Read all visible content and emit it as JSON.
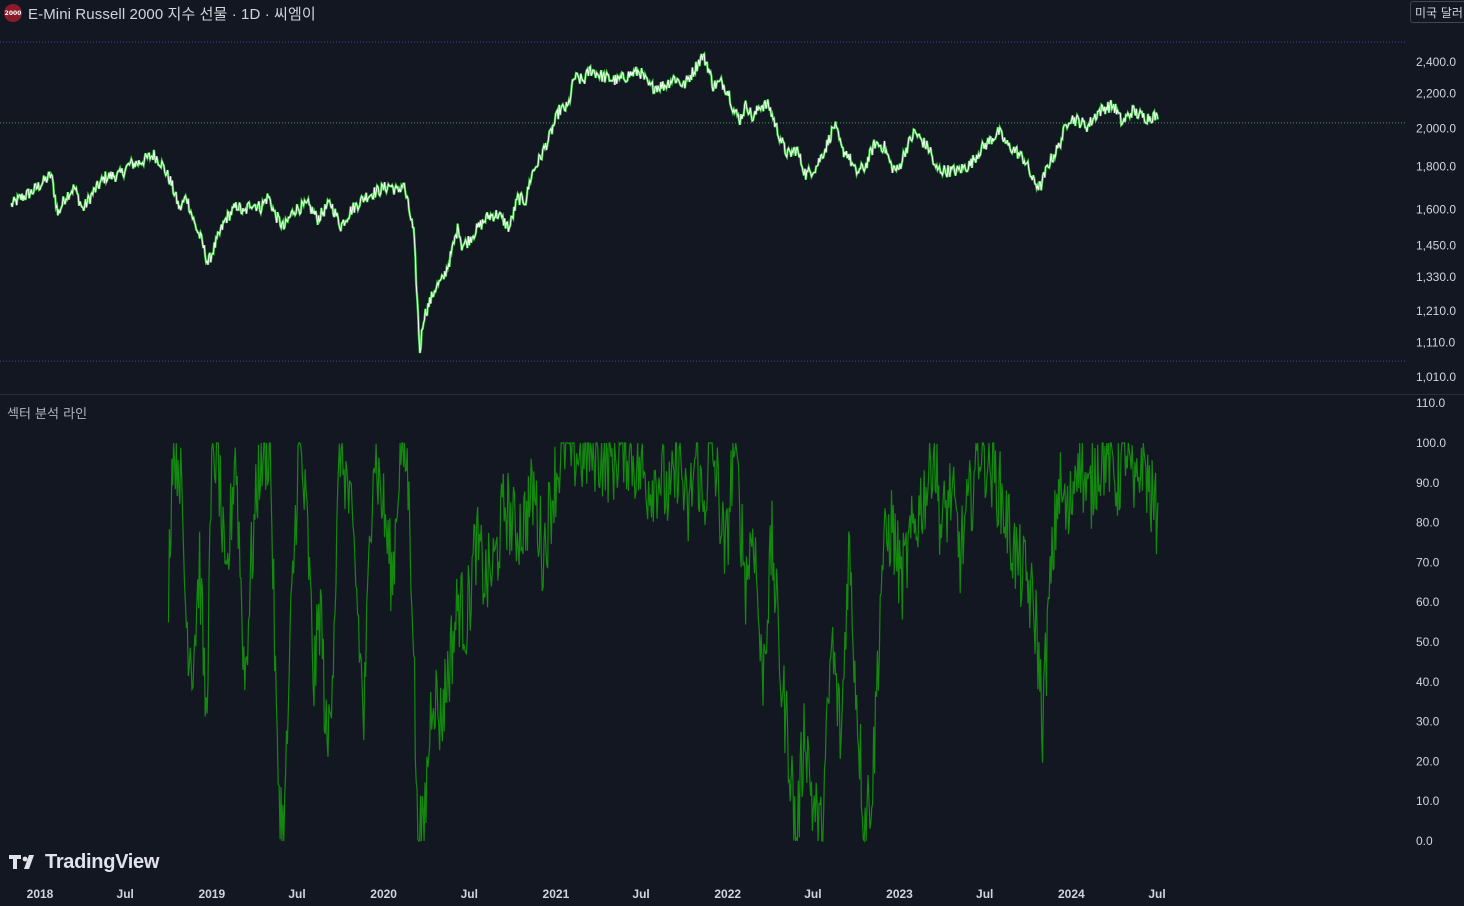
{
  "header": {
    "logo_text": "2000",
    "title": "E-Mini Russell 2000 지수 선물 · 1D · 씨엠이",
    "currency": "미국 달러"
  },
  "indicator": {
    "label": "섹터 분석 라인"
  },
  "branding": {
    "name": "TradingView",
    "logo_icon": "tradingview-logo-icon"
  },
  "colors": {
    "background": "#131722",
    "price_line": "#ffffff",
    "price_highlight": "#3ee63e",
    "indicator_line": "#138a0e",
    "reference_line": "#4caf50",
    "range_line": "#3f51b5"
  },
  "chart_data": [
    {
      "type": "line",
      "y_scale": "log",
      "ylim": [
        1000,
        2600
      ],
      "yticks": [
        {
          "value": 2400,
          "label": "2,400.0"
        },
        {
          "value": 2200,
          "label": "2,200.0"
        },
        {
          "value": 2000,
          "label": "2,000.0"
        },
        {
          "value": 1800,
          "label": "1,800.0"
        },
        {
          "value": 1600,
          "label": "1,600.0"
        },
        {
          "value": 1450,
          "label": "1,450.0"
        },
        {
          "value": 1330,
          "label": "1,330.0"
        },
        {
          "value": 1210,
          "label": "1,210.0"
        },
        {
          "value": 1110,
          "label": "1,110.0"
        },
        {
          "value": 1010,
          "label": "1,010.0"
        }
      ],
      "reference_lines": [
        2030,
        2535,
        1055
      ],
      "series": [
        {
          "x": [
            "2017-11-01",
            "2017-11-20",
            "2017-12-15",
            "2018-01-05",
            "2018-01-25",
            "2018-02-08",
            "2018-02-25",
            "2018-03-15",
            "2018-04-02",
            "2018-04-25",
            "2018-05-20",
            "2018-06-20",
            "2018-07-10",
            "2018-07-30",
            "2018-08-31",
            "2018-09-15",
            "2018-10-05",
            "2018-10-25",
            "2018-11-08",
            "2018-11-25",
            "2018-12-10",
            "2018-12-24",
            "2019-01-10",
            "2019-01-31",
            "2019-02-25",
            "2019-03-10",
            "2019-03-25",
            "2019-04-15",
            "2019-05-01",
            "2019-05-15",
            "2019-06-03",
            "2019-06-25",
            "2019-07-25",
            "2019-08-14",
            "2019-09-10",
            "2019-10-02",
            "2019-10-25",
            "2019-11-25",
            "2019-12-26",
            "2020-01-15",
            "2020-01-31",
            "2020-02-12",
            "2020-02-24",
            "2020-03-05",
            "2020-03-12",
            "2020-03-18",
            "2020-03-26",
            "2020-04-08",
            "2020-04-20",
            "2020-05-06",
            "2020-05-20",
            "2020-06-08",
            "2020-06-15",
            "2020-06-25",
            "2020-07-15",
            "2020-08-10",
            "2020-08-31",
            "2020-09-24",
            "2020-10-12",
            "2020-10-29",
            "2020-11-10",
            "2020-11-30",
            "2020-12-18",
            "2021-01-08",
            "2021-01-27",
            "2021-02-09",
            "2021-03-01",
            "2021-03-15",
            "2021-04-15",
            "2021-05-12",
            "2021-06-08",
            "2021-06-28",
            "2021-07-19",
            "2021-08-20",
            "2021-09-10",
            "2021-09-30",
            "2021-10-20",
            "2021-11-08",
            "2021-11-18",
            "2021-12-01",
            "2021-12-20",
            "2022-01-04",
            "2022-01-14",
            "2022-01-27",
            "2022-02-10",
            "2022-02-24",
            "2022-03-10",
            "2022-03-29",
            "2022-04-15",
            "2022-05-03",
            "2022-05-12",
            "2022-05-27",
            "2022-06-16",
            "2022-07-08",
            "2022-07-29",
            "2022-08-16",
            "2022-09-01",
            "2022-09-12",
            "2022-09-30",
            "2022-10-20",
            "2022-11-10",
            "2022-11-30",
            "2022-12-15",
            "2022-12-29",
            "2023-01-13",
            "2023-02-02",
            "2023-02-22",
            "2023-03-08",
            "2023-03-17",
            "2023-04-10",
            "2023-05-04",
            "2023-05-31",
            "2023-06-20",
            "2023-07-10",
            "2023-07-31",
            "2023-08-18",
            "2023-09-05",
            "2023-09-25",
            "2023-10-12",
            "2023-10-27",
            "2023-11-15",
            "2023-12-05",
            "2023-12-27",
            "2024-01-17",
            "2024-02-05",
            "2024-02-26",
            "2024-03-15",
            "2024-03-31",
            "2024-04-18",
            "2024-05-10",
            "2024-05-28",
            "2024-06-10",
            "2024-06-25",
            "2024-07-03"
          ],
          "values": [
            1620,
            1650,
            1680,
            1720,
            1760,
            1580,
            1660,
            1700,
            1600,
            1680,
            1750,
            1760,
            1810,
            1820,
            1860,
            1820,
            1730,
            1600,
            1660,
            1540,
            1470,
            1380,
            1460,
            1560,
            1620,
            1580,
            1630,
            1610,
            1660,
            1580,
            1520,
            1600,
            1620,
            1560,
            1630,
            1530,
            1600,
            1660,
            1690,
            1710,
            1680,
            1720,
            1600,
            1500,
            1260,
            1080,
            1190,
            1240,
            1290,
            1320,
            1390,
            1530,
            1450,
            1460,
            1510,
            1570,
            1580,
            1520,
            1650,
            1640,
            1760,
            1850,
            1950,
            2100,
            2120,
            2300,
            2280,
            2350,
            2300,
            2280,
            2320,
            2340,
            2240,
            2250,
            2300,
            2250,
            2340,
            2440,
            2390,
            2250,
            2270,
            2200,
            2100,
            2050,
            2140,
            2050,
            2130,
            2130,
            2000,
            1880,
            1860,
            1890,
            1760,
            1800,
            1900,
            2020,
            1880,
            1870,
            1770,
            1800,
            1920,
            1900,
            1800,
            1780,
            1880,
            1980,
            1920,
            1880,
            1790,
            1780,
            1780,
            1810,
            1880,
            1930,
            1980,
            1910,
            1880,
            1830,
            1730,
            1700,
            1820,
            1900,
            2060,
            2040,
            2010,
            2090,
            2120,
            2130,
            2030,
            2100,
            2070,
            2060,
            2070,
            2050
          ]
        }
      ]
    },
    {
      "type": "line",
      "ylim": [
        0,
        110
      ],
      "yticks": [
        {
          "value": 110,
          "label": "110.0"
        },
        {
          "value": 100,
          "label": "100.0"
        },
        {
          "value": 90,
          "label": "90.0"
        },
        {
          "value": 80,
          "label": "80.0"
        },
        {
          "value": 70,
          "label": "70.0"
        },
        {
          "value": 60,
          "label": "60.0"
        },
        {
          "value": 50,
          "label": "50.0"
        },
        {
          "value": 40,
          "label": "40.0"
        },
        {
          "value": 30,
          "label": "30.0"
        },
        {
          "value": 20,
          "label": "20.0"
        },
        {
          "value": 10,
          "label": "10.0"
        },
        {
          "value": 0,
          "label": "0.0"
        }
      ],
      "series": [
        {
          "x": [
            "2018-10-01",
            "2018-10-10",
            "2018-10-25",
            "2018-11-08",
            "2018-11-22",
            "2018-12-06",
            "2018-12-20",
            "2019-01-03",
            "2019-01-15",
            "2019-01-31",
            "2019-02-20",
            "2019-03-12",
            "2019-03-26",
            "2019-04-12",
            "2019-05-05",
            "2019-05-20",
            "2019-06-03",
            "2019-06-20",
            "2019-07-05",
            "2019-07-22",
            "2019-08-06",
            "2019-08-20",
            "2019-09-03",
            "2019-09-16",
            "2019-10-01",
            "2019-10-15",
            "2019-11-01",
            "2019-11-20",
            "2019-12-10",
            "2019-12-30",
            "2020-01-20",
            "2020-02-05",
            "2020-02-20",
            "2020-03-03",
            "2020-03-12",
            "2020-03-25",
            "2020-04-14",
            "2020-05-01",
            "2020-05-20",
            "2020-06-08",
            "2020-06-25",
            "2020-07-15",
            "2020-08-05",
            "2020-08-25",
            "2020-09-15",
            "2020-10-05",
            "2020-10-25",
            "2020-11-15",
            "2020-12-05",
            "2020-12-28",
            "2021-01-20",
            "2021-02-20",
            "2021-03-25",
            "2021-04-30",
            "2021-05-25",
            "2021-06-20",
            "2021-07-15",
            "2021-08-10",
            "2021-09-01",
            "2021-09-20",
            "2021-10-07",
            "2021-10-27",
            "2021-11-10",
            "2021-11-25",
            "2021-12-10",
            "2021-12-27",
            "2022-01-14",
            "2022-01-26",
            "2022-02-08",
            "2022-02-25",
            "2022-03-15",
            "2022-04-05",
            "2022-04-25",
            "2022-05-10",
            "2022-05-27",
            "2022-06-14",
            "2022-06-30",
            "2022-07-20",
            "2022-08-10",
            "2022-08-30",
            "2022-09-15",
            "2022-09-30",
            "2022-10-18",
            "2022-11-05",
            "2022-11-25",
            "2022-12-15",
            "2023-01-05",
            "2023-01-25",
            "2023-02-15",
            "2023-03-02",
            "2023-03-14",
            "2023-03-31",
            "2023-04-20",
            "2023-05-10",
            "2023-05-30",
            "2023-06-20",
            "2023-07-10",
            "2023-07-28",
            "2023-08-18",
            "2023-09-08",
            "2023-09-29",
            "2023-10-18",
            "2023-11-01",
            "2023-11-15",
            "2023-12-05",
            "2023-12-26",
            "2024-01-15",
            "2024-02-05",
            "2024-02-26",
            "2024-03-18",
            "2024-04-08",
            "2024-04-25",
            "2024-05-15",
            "2024-05-31",
            "2024-06-15",
            "2024-06-28",
            "2024-07-03"
          ],
          "values": [
            65,
            100,
            95,
            55,
            45,
            70,
            30,
            100,
            95,
            60,
            100,
            40,
            70,
            95,
            100,
            20,
            0,
            60,
            100,
            80,
            40,
            60,
            20,
            50,
            100,
            90,
            70,
            30,
            100,
            85,
            65,
            100,
            95,
            60,
            5,
            0,
            40,
            30,
            45,
            60,
            55,
            75,
            65,
            70,
            85,
            78,
            80,
            88,
            72,
            90,
            100,
            97,
            98,
            95,
            100,
            95,
            90,
            92,
            85,
            98,
            80,
            98,
            82,
            100,
            90,
            70,
            100,
            85,
            65,
            80,
            40,
            75,
            40,
            25,
            0,
            30,
            10,
            0,
            50,
            25,
            75,
            40,
            5,
            15,
            70,
            80,
            65,
            75,
            85,
            90,
            100,
            78,
            88,
            72,
            85,
            100,
            95,
            90,
            80,
            70,
            65,
            55,
            30,
            60,
            90,
            80,
            100,
            85,
            95,
            98,
            90,
            100,
            85,
            98,
            88,
            82,
            85
          ]
        }
      ]
    }
  ],
  "time_axis": [
    {
      "date": "2018-01-01",
      "label": "2018"
    },
    {
      "date": "2018-07-01",
      "label": "Jul"
    },
    {
      "date": "2019-01-01",
      "label": "2019"
    },
    {
      "date": "2019-07-01",
      "label": "Jul"
    },
    {
      "date": "2020-01-01",
      "label": "2020"
    },
    {
      "date": "2020-07-01",
      "label": "Jul"
    },
    {
      "date": "2021-01-01",
      "label": "2021"
    },
    {
      "date": "2021-07-01",
      "label": "Jul"
    },
    {
      "date": "2022-01-01",
      "label": "2022"
    },
    {
      "date": "2022-07-01",
      "label": "Jul"
    },
    {
      "date": "2023-01-01",
      "label": "2023"
    },
    {
      "date": "2023-07-01",
      "label": "Jul"
    },
    {
      "date": "2024-01-01",
      "label": "2024"
    },
    {
      "date": "2024-07-01",
      "label": "Jul"
    }
  ]
}
